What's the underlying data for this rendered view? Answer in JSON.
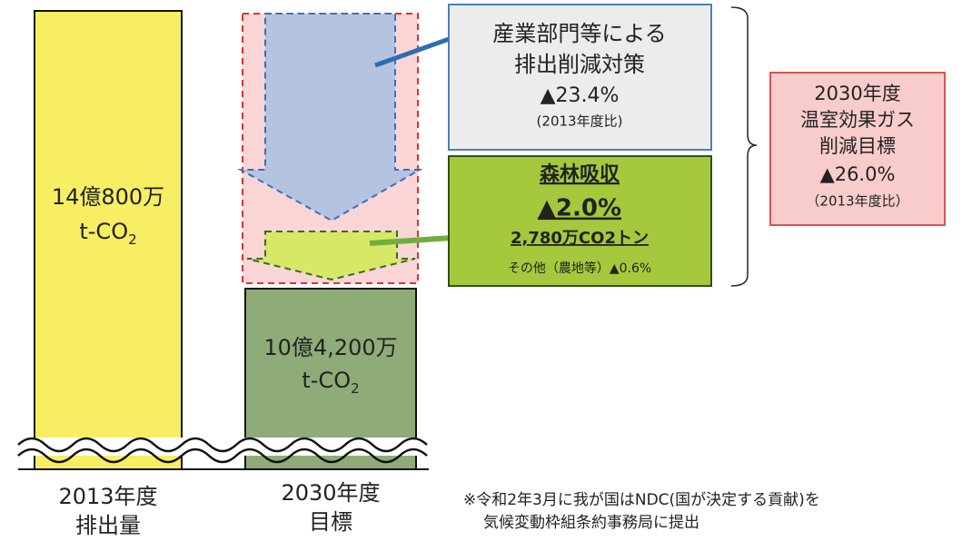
{
  "bars": [
    {
      "amount": "14億800万",
      "unit": "t-CO",
      "unit_sub": "2",
      "label": [
        "2013年度",
        "排出量"
      ]
    },
    {
      "amount": "10億4,200万",
      "unit": "t-CO",
      "unit_sub": "2",
      "label": [
        "2030年度",
        "目標"
      ]
    }
  ],
  "industry_box": {
    "lines": [
      "産業部門等による",
      "排出削減対策"
    ],
    "percent": "▲23.4%",
    "note": "(2013年度比)"
  },
  "forest_box": {
    "title": "森林吸収",
    "percent": "▲2.0%",
    "amount": "2,780万CO2トン",
    "other": "その他（農地等）▲0.6%"
  },
  "target_box": {
    "lines": [
      "2030年度",
      "温室効果ガス",
      "削減目標"
    ],
    "percent": "▲26.0%",
    "note": "（2013年度比）"
  },
  "footnote": [
    "※令和2年3月に我が国はNDC(国が決定する貢献)を",
    "気候変動枠組条約事務局に提出"
  ]
}
